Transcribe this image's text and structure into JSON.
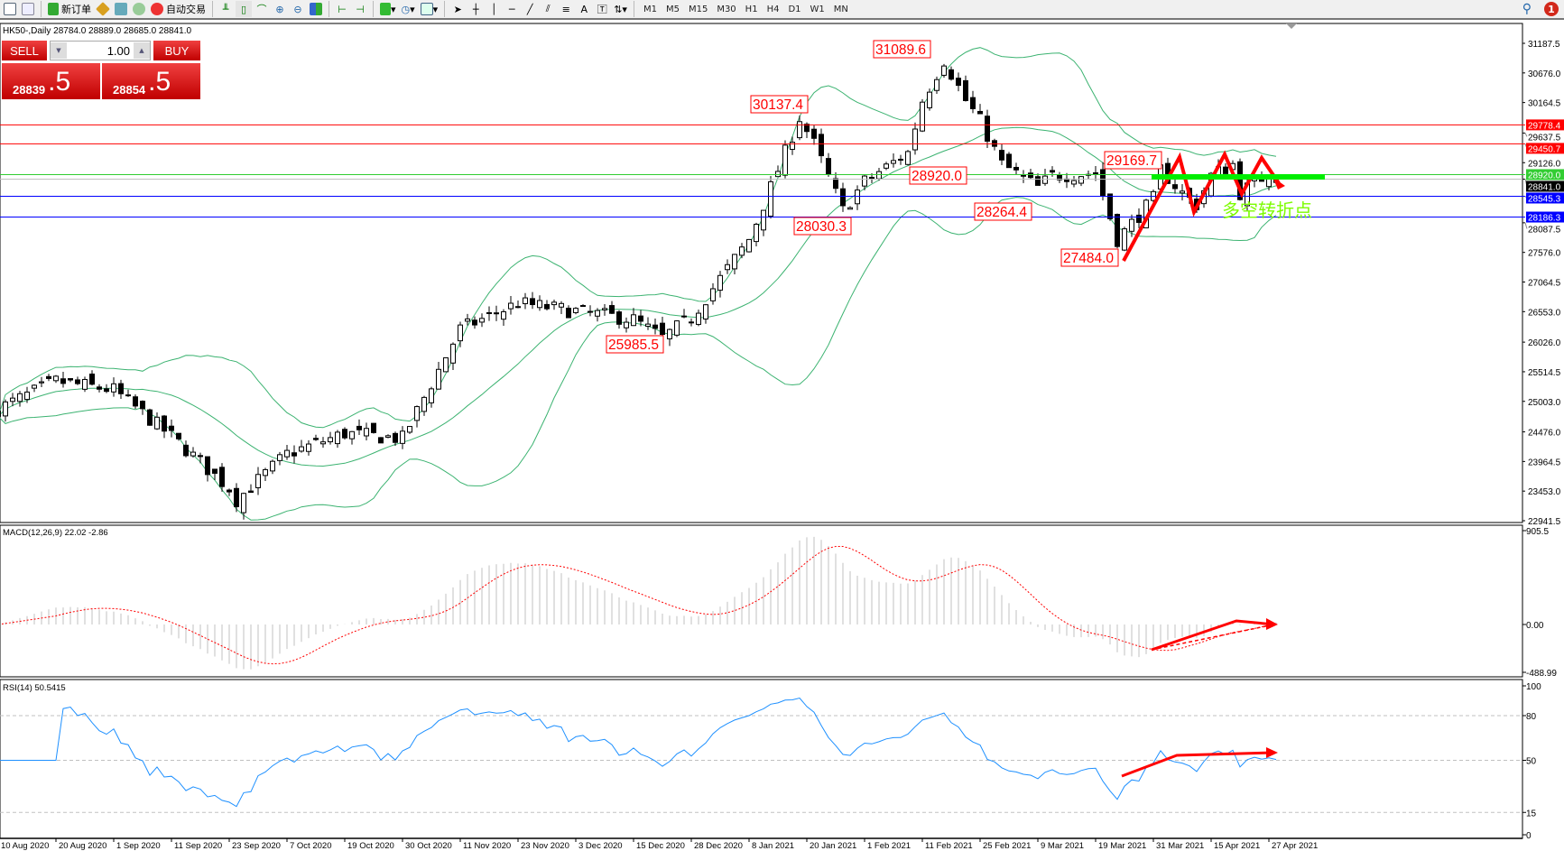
{
  "toolbar": {
    "new_order": "新订单",
    "auto_trading": "自动交易",
    "periods": [
      "M1",
      "M5",
      "M15",
      "M30",
      "H1",
      "H4",
      "D1",
      "W1",
      "MN"
    ],
    "notification_count": "1",
    "text_tool": "A"
  },
  "chart": {
    "title": "HK50-,Daily  28784.0 28889.0 28685.0 28841.0",
    "symbol": "HK50-",
    "timeframe": "Daily",
    "ohlc": {
      "open": 28784.0,
      "high": 28889.0,
      "low": 28685.0,
      "close": 28841.0
    }
  },
  "one_click": {
    "sell_label": "SELL",
    "buy_label": "BUY",
    "lot": "1.00",
    "sell_price_main": "28839",
    "sell_price_big": ".5",
    "buy_price_main": "28854",
    "buy_price_big": ".5"
  },
  "price_axis": {
    "ticks": [
      "31187.5",
      "30676.0",
      "30164.5",
      "29637.5",
      "29126.0",
      "28087.5",
      "27576.0",
      "27064.5",
      "26553.0",
      "26026.0",
      "25514.5",
      "25003.0",
      "24476.0",
      "23964.5",
      "23453.0",
      "22941.5"
    ],
    "range": [
      22941.5,
      31187.5
    ]
  },
  "horizontal_lines": [
    {
      "price": 29778.4,
      "label": "29778.4",
      "color": "#ff0000"
    },
    {
      "price": 29450.7,
      "label": "29450.7",
      "color": "#ff0000"
    },
    {
      "price": 28920.0,
      "label": "28920.0",
      "color": "#32cd32"
    },
    {
      "price": 28841.0,
      "label": "28841.0",
      "color": "#000000"
    },
    {
      "price": 28545.3,
      "label": "28545.3",
      "color": "#0000ff"
    },
    {
      "price": 28186.3,
      "label": "28186.3",
      "color": "#0000ff"
    }
  ],
  "annotations": [
    {
      "text": "31089.6"
    },
    {
      "text": "30137.4"
    },
    {
      "text": "28920.0"
    },
    {
      "text": "28030.3"
    },
    {
      "text": "25985.5"
    },
    {
      "text": "28264.4"
    },
    {
      "text": "29169.7"
    },
    {
      "text": "27484.0"
    }
  ],
  "pattern_text": "多空转折点",
  "price_path": [
    [
      "10 Aug 2020",
      24874
    ],
    [
      "20 Aug 2020",
      25350
    ],
    [
      "1 Sep 2020",
      25200
    ],
    [
      "11 Sep 2020",
      24400
    ],
    [
      "23 Sep 2020",
      23500
    ],
    [
      "25 Sep 2020",
      23300
    ],
    [
      "7 Oct 2020",
      24095
    ],
    [
      "19 Oct 2020",
      24450
    ],
    [
      "30 Oct 2020",
      24360
    ],
    [
      "11 Nov 2020",
      26250
    ],
    [
      "23 Nov 2020",
      26700
    ],
    [
      "3 Dec 2020",
      26560
    ],
    [
      "15 Dec 2020",
      26417
    ],
    [
      "21 Dec 2020",
      26100
    ],
    [
      "28 Dec 2020",
      26450
    ],
    [
      "8 Jan 2021",
      27800
    ],
    [
      "13 Jan 2021",
      28700
    ],
    [
      "19 Jan 2021",
      29900
    ],
    [
      "22 Jan 2021",
      29450
    ],
    [
      "28 Jan 2021",
      28300
    ],
    [
      "1 Feb 2021",
      28800
    ],
    [
      "8 Feb 2021",
      29300
    ],
    [
      "11 Feb 2021",
      30200
    ],
    [
      "17 Feb 2021",
      30900
    ],
    [
      "22 Feb 2021",
      30200
    ],
    [
      "25 Feb 2021",
      29850
    ],
    [
      "2 Mar 2021",
      29100
    ],
    [
      "9 Mar 2021",
      28700
    ],
    [
      "12 Mar 2021",
      28900
    ],
    [
      "19 Mar 2021",
      28950
    ],
    [
      "24 Mar 2021",
      27800
    ],
    [
      "31 Mar 2021",
      28500
    ],
    [
      "1 Apr 2021",
      29000
    ],
    [
      "8 Apr 2021",
      28600
    ],
    [
      "12 Apr 2021",
      28400
    ],
    [
      "15 Apr 2021",
      28900
    ],
    [
      "19 Apr 2021",
      29100
    ],
    [
      "21 Apr 2021",
      28600
    ],
    [
      "27 Apr 2021",
      28950
    ],
    [
      "28 Apr 2021",
      28841
    ]
  ],
  "macd": {
    "label": "MACD(12,26,9) 22.02 -2.86",
    "ticks": [
      "905.5",
      "0.00",
      "-488.99"
    ],
    "range": [
      -488.99,
      905.5
    ],
    "histogram_color": "#c0c0c0",
    "signal_color": "#ff0000"
  },
  "rsi": {
    "label": "RSI(14) 50.5415",
    "ticks": [
      "100",
      "80",
      "50",
      "15",
      "0"
    ],
    "levels": [
      80,
      50,
      15
    ],
    "color": "#1e90ff"
  },
  "time_axis": {
    "labels": [
      "10 Aug 2020",
      "20 Aug 2020",
      "1 Sep 2020",
      "11 Sep 2020",
      "23 Sep 2020",
      "7 Oct 2020",
      "19 Oct 2020",
      "30 Oct 2020",
      "11 Nov 2020",
      "23 Nov 2020",
      "3 Dec 2020",
      "15 Dec 2020",
      "28 Dec 2020",
      "8 Jan 2021",
      "20 Jan 2021",
      "1 Feb 2021",
      "11 Feb 2021",
      "25 Feb 2021",
      "9 Mar 2021",
      "19 Mar 2021",
      "31 Mar 2021",
      "15 Apr 2021",
      "27 Apr 2021"
    ]
  },
  "colors": {
    "bollinger": "#3cb371",
    "arrow": "#ff0000",
    "support_bar": "#00ee00",
    "candle_bull": "#ffffff",
    "candle_bear": "#000000"
  }
}
